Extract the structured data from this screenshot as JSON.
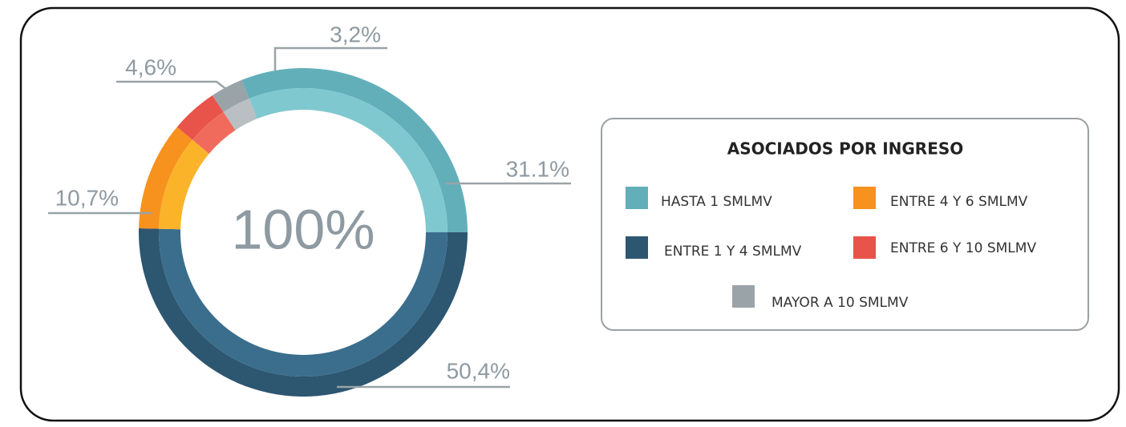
{
  "chart_data": {
    "type": "donut",
    "title": "ASOCIADOS POR INGRESO",
    "center_label": "100%",
    "categories": [
      "HASTA 1 SMLMV",
      "ENTRE 1 Y 4 SMLMV",
      "ENTRE 4 Y 6 SMLMV",
      "ENTRE 6 Y 10 SMLMV",
      "MAYOR A 10 SMLMV"
    ],
    "values": [
      31.1,
      50.4,
      10.7,
      4.6,
      3.2
    ],
    "value_labels": [
      "31.1%",
      "50,4%",
      "10,7%",
      "4,6%",
      "3,2%"
    ],
    "colors": [
      "#62afba",
      "#2d5670",
      "#f7921e",
      "#e8534a",
      "#9aa3a8"
    ],
    "inner_colors": [
      "#7fc8cf",
      "#3a6e8c",
      "#fbb32a",
      "#f06b5c",
      "#b9bfc2"
    ]
  }
}
